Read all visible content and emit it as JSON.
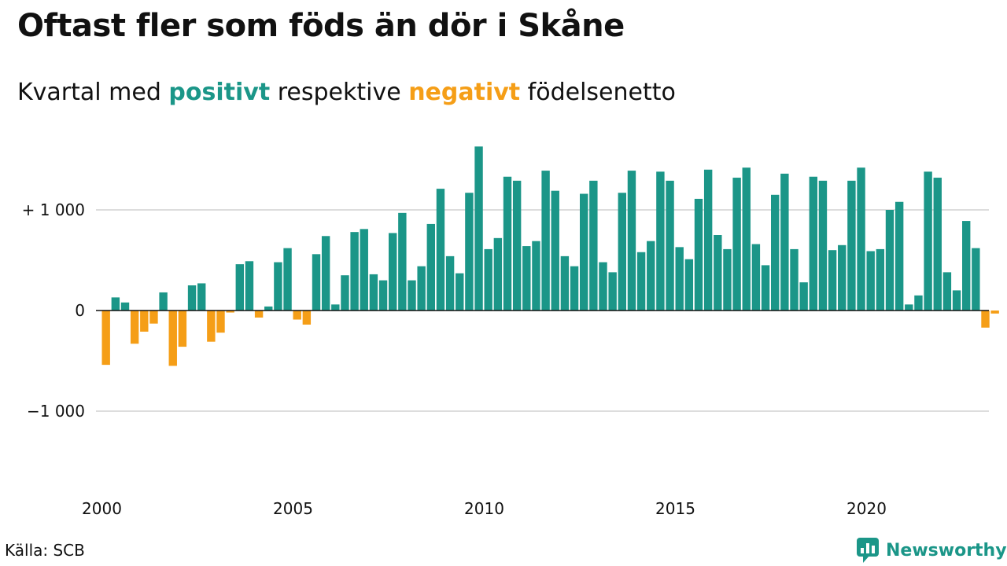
{
  "title": "Oftast fler som föds än dör i Skåne",
  "subtitle": {
    "prefix": "Kvartal med ",
    "positive_word": "positivt",
    "middle": " respektive ",
    "negative_word": "negativt",
    "suffix": " födelsenetto"
  },
  "colors": {
    "positive": "#1b9688",
    "negative": "#f59e17",
    "grid": "#dddddd",
    "zero_line": "#111111"
  },
  "source": "Källa: SCB",
  "brand": {
    "name": "Newsworthy",
    "icon": "bar-chart-bubble-icon"
  },
  "chart_data": {
    "type": "bar",
    "x_start": "2000 Q1",
    "frequency": "quarterly",
    "xticks": [
      "2000",
      "2005",
      "2010",
      "2015",
      "2020"
    ],
    "yticks": [
      {
        "value": 1000,
        "label": "+ 1 000"
      },
      {
        "value": 0,
        "label": "0"
      },
      {
        "value": -1000,
        "label": "−1 000"
      }
    ],
    "ylim": [
      -1650,
      1650
    ],
    "grid": true,
    "values": [
      -540,
      130,
      80,
      -330,
      -210,
      -130,
      180,
      -550,
      -360,
      250,
      270,
      -310,
      -220,
      -20,
      460,
      490,
      -70,
      40,
      480,
      620,
      -90,
      -140,
      560,
      740,
      60,
      350,
      780,
      810,
      360,
      300,
      770,
      970,
      300,
      440,
      860,
      1210,
      540,
      370,
      1170,
      1630,
      610,
      720,
      1330,
      1290,
      640,
      690,
      1390,
      1190,
      540,
      440,
      1160,
      1290,
      480,
      380,
      1170,
      1390,
      580,
      690,
      1380,
      1290,
      630,
      510,
      1110,
      1400,
      750,
      610,
      1320,
      1420,
      660,
      450,
      1150,
      1360,
      610,
      280,
      1330,
      1290,
      600,
      650,
      1290,
      1420,
      590,
      610,
      1000,
      1080,
      60,
      150,
      1380,
      1320,
      380,
      200,
      890,
      620,
      -170,
      -30
    ]
  }
}
